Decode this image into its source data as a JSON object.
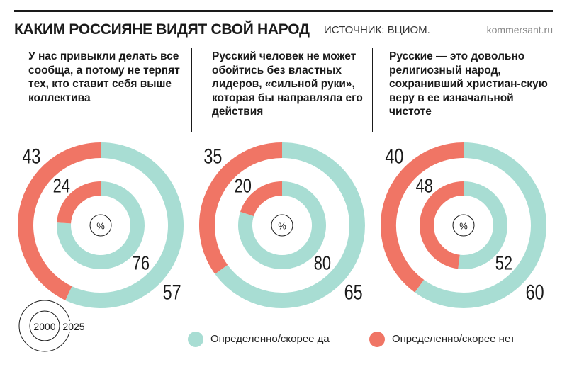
{
  "title": "КАКИМ РОССИЯНЕ ВИДЯТ СВОЙ НАРОД",
  "source": "ИСТОЧНИК: ВЦИОМ.",
  "brand": "kommersant.ru",
  "colors": {
    "yes": "#a8ddd3",
    "no": "#f07565"
  },
  "chart_data": {
    "type": "pie",
    "unit_label": "%",
    "years_legend": {
      "inner": "2000",
      "outer": "2025"
    },
    "legend": [
      {
        "key": "yes",
        "label": "Определенно/скорее да"
      },
      {
        "key": "no",
        "label": "Определенно/скорее нет"
      }
    ],
    "panels": [
      {
        "question": "У нас привыкли делать все сообща, а потому не терпят тех, кто ставит себя выше коллектива",
        "rings": [
          {
            "year": "2000",
            "yes": 76,
            "no": 24
          },
          {
            "year": "2025",
            "yes": 57,
            "no": 43
          }
        ]
      },
      {
        "question": "Русский человек не может обойтись без властных лидеров, «сильной руки», которая бы направляла его действия",
        "rings": [
          {
            "year": "2000",
            "yes": 80,
            "no": 20
          },
          {
            "year": "2025",
            "yes": 65,
            "no": 35
          }
        ]
      },
      {
        "question": "Русские — это довольно религиозный народ, сохранивший христиан-скую веру в ее изначальной чистоте",
        "rings": [
          {
            "year": "2000",
            "yes": 52,
            "no": 48
          },
          {
            "year": "2025",
            "yes": 60,
            "no": 40
          }
        ]
      }
    ]
  }
}
